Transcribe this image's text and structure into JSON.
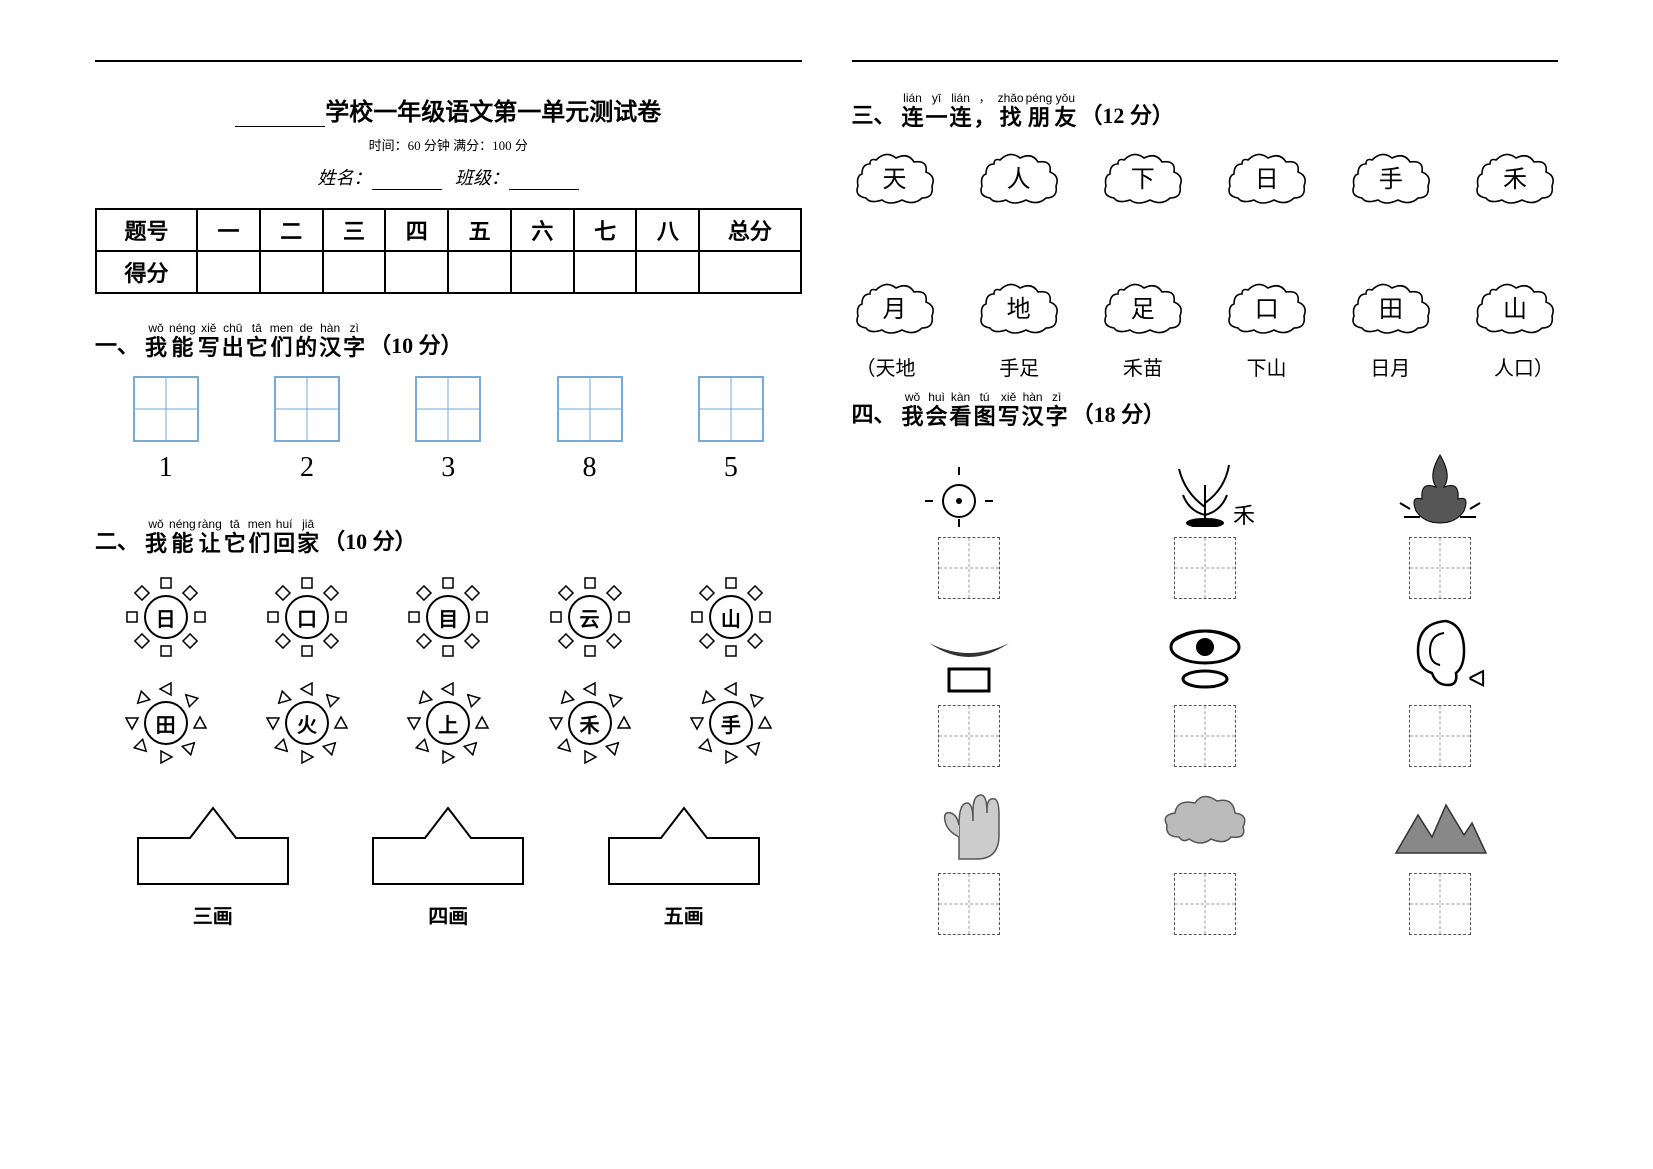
{
  "header": {
    "title_suffix": "学校一年级语文第一单元测试卷",
    "subtitle": "时间：60 分钟  满分：100 分",
    "name_label": "姓名：",
    "class_label": "班级："
  },
  "score_table": {
    "row1": [
      "题号",
      "一",
      "二",
      "三",
      "四",
      "五",
      "六",
      "七",
      "八",
      "总分"
    ],
    "row2_head": "得分"
  },
  "sections": {
    "s1": {
      "prefix": "一、",
      "ruby": [
        {
          "py": "wǒ",
          "ch": "我"
        },
        {
          "py": "néng",
          "ch": "能"
        },
        {
          "py": "xiě",
          "ch": "写"
        },
        {
          "py": "chū",
          "ch": "出"
        },
        {
          "py": "tā",
          "ch": "它"
        },
        {
          "py": "men",
          "ch": "们"
        },
        {
          "py": "de",
          "ch": "的"
        },
        {
          "py": "hàn",
          "ch": "汉"
        },
        {
          "py": "zì",
          "ch": "字"
        }
      ],
      "suffix": "（10 分）",
      "numbers": [
        "1",
        "2",
        "3",
        "8",
        "5"
      ]
    },
    "s2": {
      "prefix": "二、",
      "ruby": [
        {
          "py": "wǒ",
          "ch": "我"
        },
        {
          "py": "néng",
          "ch": "能"
        },
        {
          "py": "ràng",
          "ch": "让"
        },
        {
          "py": "tā",
          "ch": "它"
        },
        {
          "py": "men",
          "ch": "们"
        },
        {
          "py": "huí",
          "ch": "回"
        },
        {
          "py": "jiā",
          "ch": "家"
        }
      ],
      "suffix": "（10 分）",
      "sun_row1": {
        "style": "square",
        "chars": [
          "日",
          "口",
          "目",
          "云",
          "山"
        ]
      },
      "sun_row2": {
        "style": "tri",
        "chars": [
          "田",
          "火",
          "上",
          "禾",
          "手"
        ]
      },
      "arrows": [
        "三画",
        "四画",
        "五画"
      ]
    },
    "s3": {
      "prefix": "三、",
      "ruby": [
        {
          "py": "lián",
          "ch": "连"
        },
        {
          "py": "yī",
          "ch": "一"
        },
        {
          "py": "lián",
          "ch": "连"
        },
        {
          "py": "，",
          "ch": "，"
        },
        {
          "py": "zhǎo",
          "ch": "找"
        },
        {
          "py": "péng",
          "ch": "朋"
        },
        {
          "py": "yǒu",
          "ch": "友"
        }
      ],
      "suffix": "（12 分）",
      "top": [
        "天",
        "人",
        "下",
        "日",
        "手",
        "禾"
      ],
      "bottom": [
        "月",
        "地",
        "足",
        "口",
        "田",
        "山"
      ],
      "answers": [
        "（天地",
        "手足",
        "禾苗",
        "下山",
        "日月",
        "人口）"
      ]
    },
    "s4": {
      "prefix": "四、",
      "ruby": [
        {
          "py": "wǒ",
          "ch": "我"
        },
        {
          "py": "huì",
          "ch": "会"
        },
        {
          "py": "kàn",
          "ch": "看"
        },
        {
          "py": "tú",
          "ch": "图"
        },
        {
          "py": "xiě",
          "ch": "写"
        },
        {
          "py": "hàn",
          "ch": "汉"
        },
        {
          "py": "zì",
          "ch": "字"
        }
      ],
      "suffix": "（18 分）",
      "rows": [
        [
          "sun",
          "grass",
          "fire"
        ],
        [
          "mouth",
          "eye",
          "ear"
        ],
        [
          "hand",
          "cloud",
          "mountain"
        ]
      ]
    }
  },
  "colors": {
    "page_bg": "#ffffff",
    "text": "#000000",
    "box_border": "#7aa9d6",
    "dashed_border": "#555555"
  }
}
